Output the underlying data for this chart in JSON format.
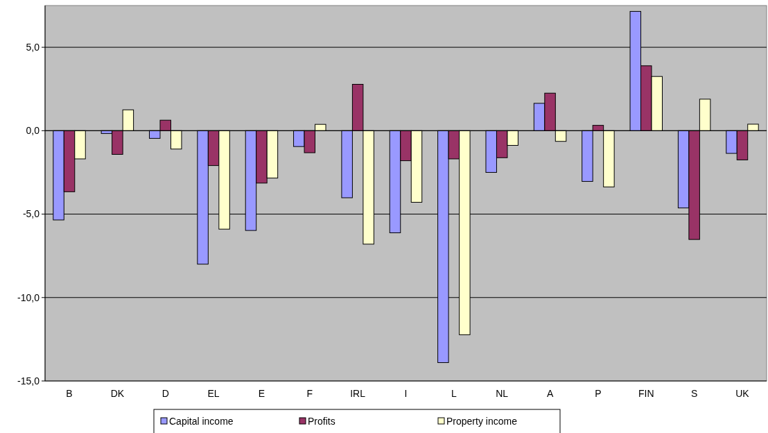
{
  "chart_data": {
    "type": "bar",
    "categories": [
      "B",
      "DK",
      "D",
      "EL",
      "E",
      "F",
      "IRL",
      "I",
      "L",
      "NL",
      "A",
      "P",
      "FIN",
      "S",
      "UK"
    ],
    "series": [
      {
        "name": "Capital income",
        "color": "#9999ff",
        "values": [
          -5.35,
          -0.17,
          -0.46,
          -8.0,
          -5.98,
          -0.95,
          -4.02,
          -6.12,
          -13.9,
          -2.5,
          1.64,
          -3.04,
          7.15,
          -4.63,
          -1.36
        ]
      },
      {
        "name": "Profits",
        "color": "#993366",
        "values": [
          -3.66,
          -1.42,
          0.63,
          -2.09,
          -3.14,
          -1.32,
          2.78,
          -1.8,
          -1.69,
          -1.62,
          2.25,
          0.32,
          3.89,
          -6.52,
          -1.75
        ]
      },
      {
        "name": "Property income",
        "color": "#ffffcc",
        "values": [
          -1.69,
          1.25,
          -1.1,
          -5.9,
          -2.84,
          0.38,
          -6.8,
          -4.29,
          -12.23,
          -0.88,
          -0.64,
          -3.37,
          3.25,
          1.89,
          0.39
        ]
      }
    ],
    "ylim": [
      -15,
      7.5
    ],
    "yticks": [
      {
        "value": -15,
        "label": "-15,0"
      },
      {
        "value": -10,
        "label": "-10,0"
      },
      {
        "value": -5,
        "label": "-5,0"
      },
      {
        "value": 0,
        "label": "0,0"
      },
      {
        "value": 5,
        "label": "5,0"
      }
    ],
    "grid": "y",
    "legend": "bottom"
  }
}
